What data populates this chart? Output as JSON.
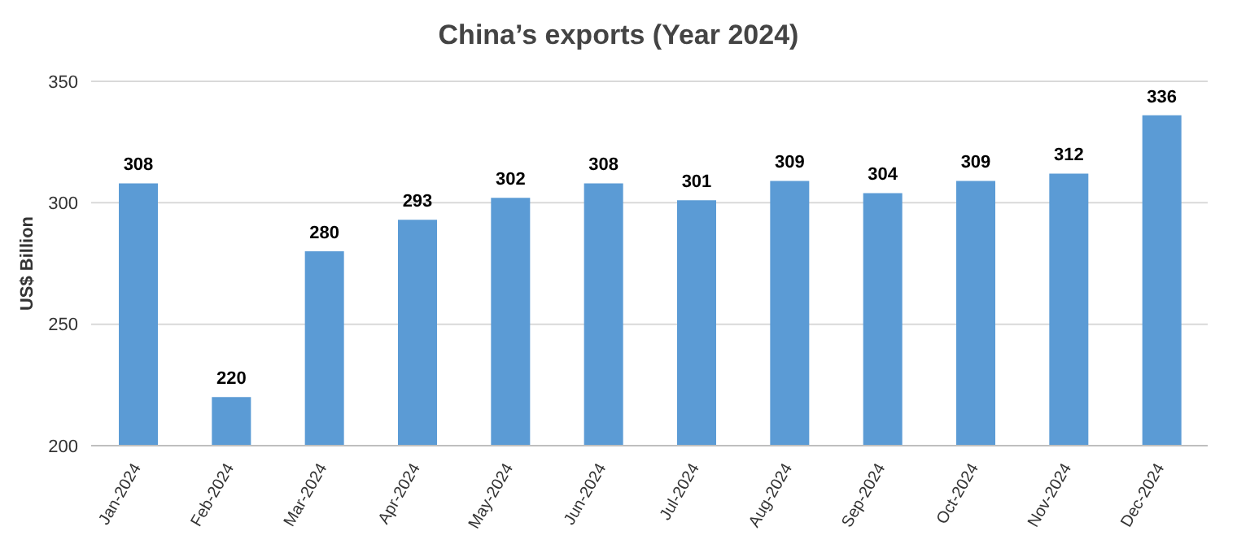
{
  "chart_data": {
    "type": "bar",
    "title": "China’s exports (Year 2024)",
    "ylabel": "US$ Billion",
    "categories": [
      "Jan-2024",
      "Feb-2024",
      "Mar-2024",
      "Apr-2024",
      "May-2024",
      "Jun-2024",
      "Jul-2024",
      "Aug-2024",
      "Sep-2024",
      "Oct-2024",
      "Nov-2024",
      "Dec-2024"
    ],
    "values": [
      308,
      220,
      280,
      293,
      302,
      308,
      301,
      309,
      304,
      309,
      312,
      336
    ],
    "color": "#5b9bd5",
    "ylim": [
      200,
      350
    ],
    "yticks": [
      200,
      250,
      300,
      350
    ],
    "grid": "y",
    "data_labels": true,
    "legend": false
  }
}
